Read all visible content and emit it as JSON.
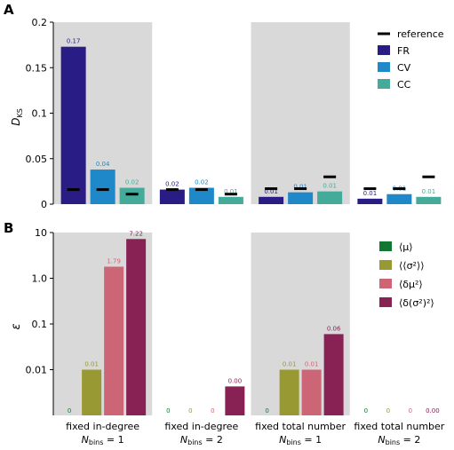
{
  "panels": {
    "a": {
      "letter": "A"
    },
    "b": {
      "letter": "B"
    }
  },
  "groups": [
    "fixed in-degree",
    "fixed in-degree",
    "fixed total number",
    "fixed total number"
  ],
  "group_subs": [
    {
      "base": "N",
      "sub": "bins",
      "rest": " = 1"
    },
    {
      "base": "N",
      "sub": "bins",
      "rest": " = 2"
    },
    {
      "base": "N",
      "sub": "bins",
      "rest": " = 1"
    },
    {
      "base": "N",
      "sub": "bins",
      "rest": " = 2"
    }
  ],
  "colors": {
    "FR": "#2a1c85",
    "CV": "#1f88c9",
    "CC": "#44aa99",
    "mu": "#117733",
    "sigma2": "#999933",
    "dmu2": "#cc6677",
    "dsigma2": "#882255",
    "shade": "#d9d9d9",
    "reference": "#000000"
  },
  "chart_data": [
    {
      "type": "bar",
      "panel": "A",
      "ylabel": "D_KS",
      "ylabel_base": "D",
      "ylabel_sub": "KS",
      "ylim": [
        0,
        0.2
      ],
      "yticks": [
        0,
        0.05,
        0.1,
        0.15,
        0.2
      ],
      "ytick_labels": [
        "0",
        "0.05",
        "0.1",
        "0.15",
        "0.2"
      ],
      "legend": {
        "position": "top-right",
        "entries": [
          "reference",
          "FR",
          "CV",
          "CC"
        ]
      },
      "series": [
        {
          "name": "FR",
          "values": [
            0.173,
            0.016,
            0.008,
            0.006
          ],
          "labels": [
            "0.17",
            "0.02",
            "0.01",
            "0.01"
          ],
          "reference": [
            0.016,
            0.016,
            0.017,
            0.017
          ]
        },
        {
          "name": "CV",
          "values": [
            0.038,
            0.018,
            0.013,
            0.011
          ],
          "labels": [
            "0.04",
            "0.02",
            "0.01",
            "0.01"
          ],
          "reference": [
            0.016,
            0.016,
            0.017,
            0.017
          ]
        },
        {
          "name": "CC",
          "values": [
            0.018,
            0.008,
            0.014,
            0.008
          ],
          "labels": [
            "0.02",
            "0.01",
            "0.01",
            "0.01"
          ],
          "reference": [
            0.011,
            0.011,
            0.03,
            0.03
          ]
        }
      ]
    },
    {
      "type": "bar",
      "panel": "B",
      "yscale": "log",
      "ylabel": "ε",
      "ylim": [
        0.001,
        10
      ],
      "yticks": [
        0.01,
        0.1,
        1.0,
        10
      ],
      "ytick_labels": [
        "0.01",
        "0.1",
        "1.0",
        "10"
      ],
      "legend": {
        "position": "top-right",
        "entries": [
          "⟨μ⟩",
          "⟨⟨σ²⟩⟩",
          "⟨δμ²⟩",
          "⟨δ(σ²)²⟩"
        ]
      },
      "series": [
        {
          "name": "⟨μ⟩",
          "values": [
            0,
            0,
            0,
            0
          ],
          "labels": [
            "0",
            "0",
            "0",
            "0"
          ]
        },
        {
          "name": "⟨⟨σ²⟩⟩",
          "values": [
            0.01,
            0,
            0.01,
            0
          ],
          "labels": [
            "0.01",
            "0",
            "0.01",
            "0"
          ]
        },
        {
          "name": "⟨δμ²⟩",
          "values": [
            1.79,
            0,
            0.01,
            0
          ],
          "labels": [
            "1.79",
            "0",
            "0.01",
            "0"
          ]
        },
        {
          "name": "⟨δ(σ²)²⟩",
          "values": [
            7.22,
            0.0043,
            0.06,
            0.0
          ],
          "labels": [
            "7.22",
            "0.00",
            "0.06",
            "0.00"
          ]
        }
      ]
    }
  ]
}
